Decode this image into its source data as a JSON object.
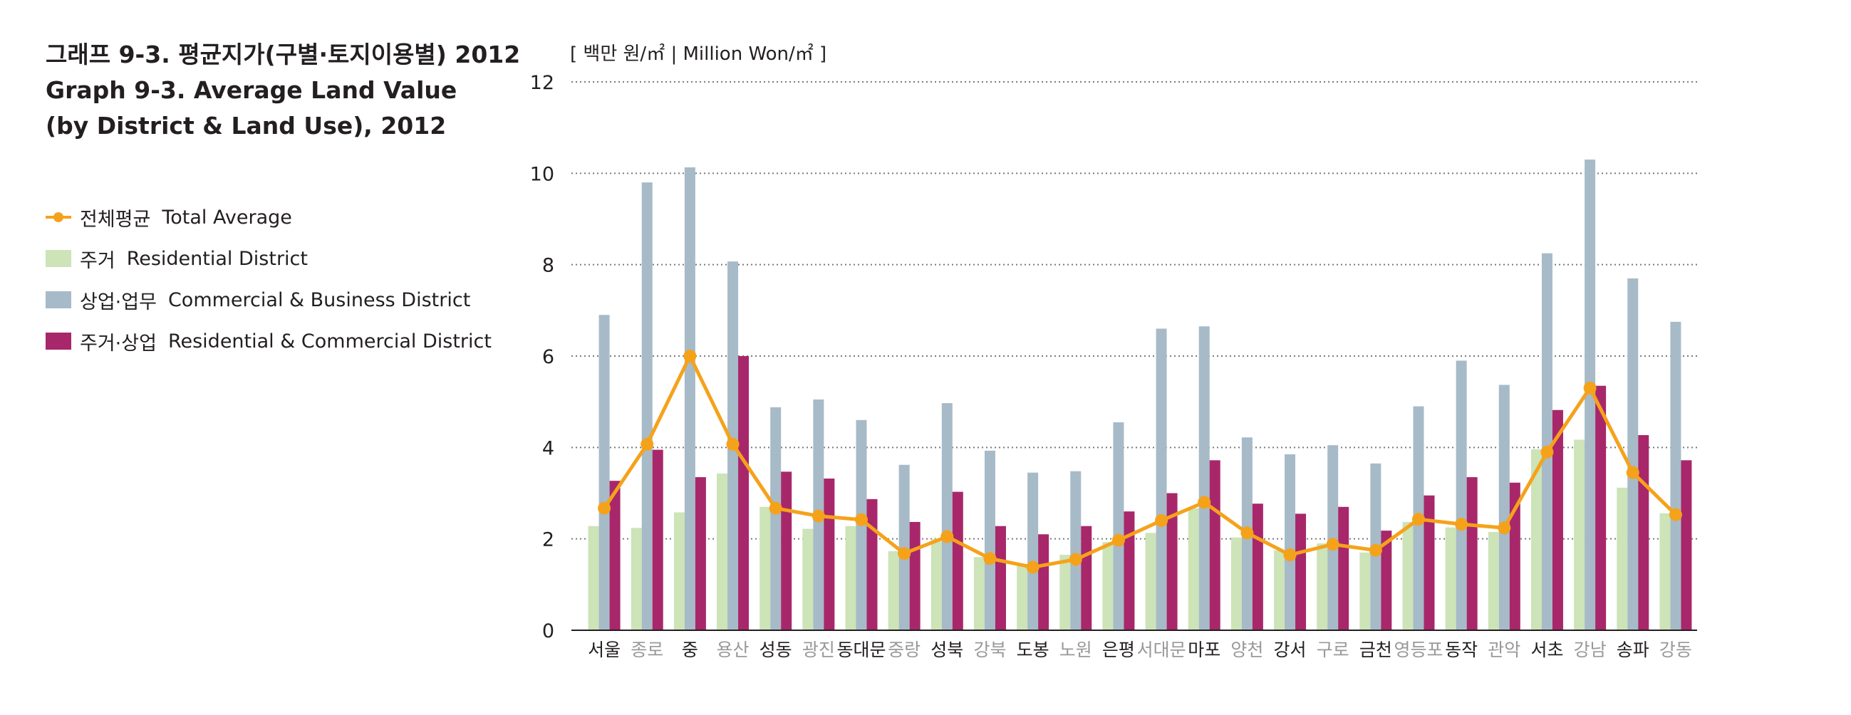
{
  "header": {
    "title_ko": "그래프 9-3. 평균지가(구별·토지이용별) 2012",
    "title_en_1": "Graph 9-3. Average Land Value",
    "title_en_2": "(by District & Land Use), 2012"
  },
  "legend": [
    {
      "ko": "전체평균",
      "en": "Total Average"
    },
    {
      "ko": "주거",
      "en": "Residential District"
    },
    {
      "ko": "상업·업무",
      "en": "Commercial & Business District"
    },
    {
      "ko": "주거·상업",
      "en": "Residential & Commercial District"
    }
  ],
  "colors": {
    "average": "#f5a21b",
    "residential": "#cde3b8",
    "commercial": "#a7bac8",
    "mixed": "#a8276a",
    "category_dark": "#231f20",
    "category_light": "#999999",
    "grid": "#7a7a7a",
    "axis": "#231f20"
  },
  "chart_data": {
    "type": "bar",
    "unit_label": "[ 백만 원/㎡ | Million Won/㎡ ]",
    "ylim": [
      0,
      12
    ],
    "yticks": [
      "0",
      "2",
      "4",
      "6",
      "8",
      "10",
      "12"
    ],
    "grid": "dotted horizontal",
    "categories": [
      "서울",
      "종로",
      "중",
      "용산",
      "성동",
      "광진",
      "동대문",
      "중랑",
      "성북",
      "강북",
      "도봉",
      "노원",
      "은평",
      "서대문",
      "마포",
      "양천",
      "강서",
      "구로",
      "금천",
      "영등포",
      "동작",
      "관악",
      "서초",
      "강남",
      "송파",
      "강동"
    ],
    "category_highlight": [
      true,
      false,
      true,
      false,
      true,
      false,
      true,
      false,
      true,
      false,
      true,
      false,
      true,
      false,
      true,
      false,
      true,
      false,
      true,
      false,
      true,
      false,
      true,
      false,
      true,
      false
    ],
    "series": [
      {
        "name": "주거 Residential District",
        "type": "bar",
        "values": [
          2.28,
          2.24,
          2.58,
          3.43,
          2.7,
          2.22,
          2.28,
          1.73,
          2.0,
          1.6,
          1.45,
          1.65,
          1.93,
          2.13,
          2.67,
          2.03,
          1.75,
          1.9,
          1.7,
          2.37,
          2.25,
          2.15,
          3.96,
          4.17,
          3.12,
          2.56
        ]
      },
      {
        "name": "상업·업무 Commercial & Business District",
        "type": "bar",
        "values": [
          6.9,
          9.8,
          10.13,
          8.07,
          4.88,
          5.05,
          4.6,
          3.62,
          4.97,
          3.93,
          3.45,
          3.48,
          4.55,
          6.6,
          6.65,
          4.22,
          3.85,
          4.05,
          3.65,
          4.9,
          5.9,
          5.37,
          8.25,
          10.3,
          7.7,
          6.75
        ]
      },
      {
        "name": "주거·상업 Residential & Commercial District",
        "type": "bar",
        "values": [
          3.27,
          3.95,
          3.35,
          6.0,
          3.47,
          3.32,
          2.87,
          2.37,
          3.03,
          2.28,
          2.1,
          2.28,
          2.6,
          3.0,
          3.72,
          2.77,
          2.55,
          2.7,
          2.18,
          2.95,
          3.35,
          3.23,
          4.82,
          5.35,
          4.27,
          3.72
        ]
      },
      {
        "name": "전체평균 Total Average",
        "type": "line",
        "values": [
          2.67,
          4.07,
          6.0,
          4.07,
          2.67,
          2.5,
          2.42,
          1.68,
          2.05,
          1.57,
          1.38,
          1.55,
          1.97,
          2.4,
          2.8,
          2.13,
          1.65,
          1.88,
          1.75,
          2.43,
          2.32,
          2.24,
          3.9,
          5.3,
          3.45,
          2.53
        ]
      }
    ]
  }
}
